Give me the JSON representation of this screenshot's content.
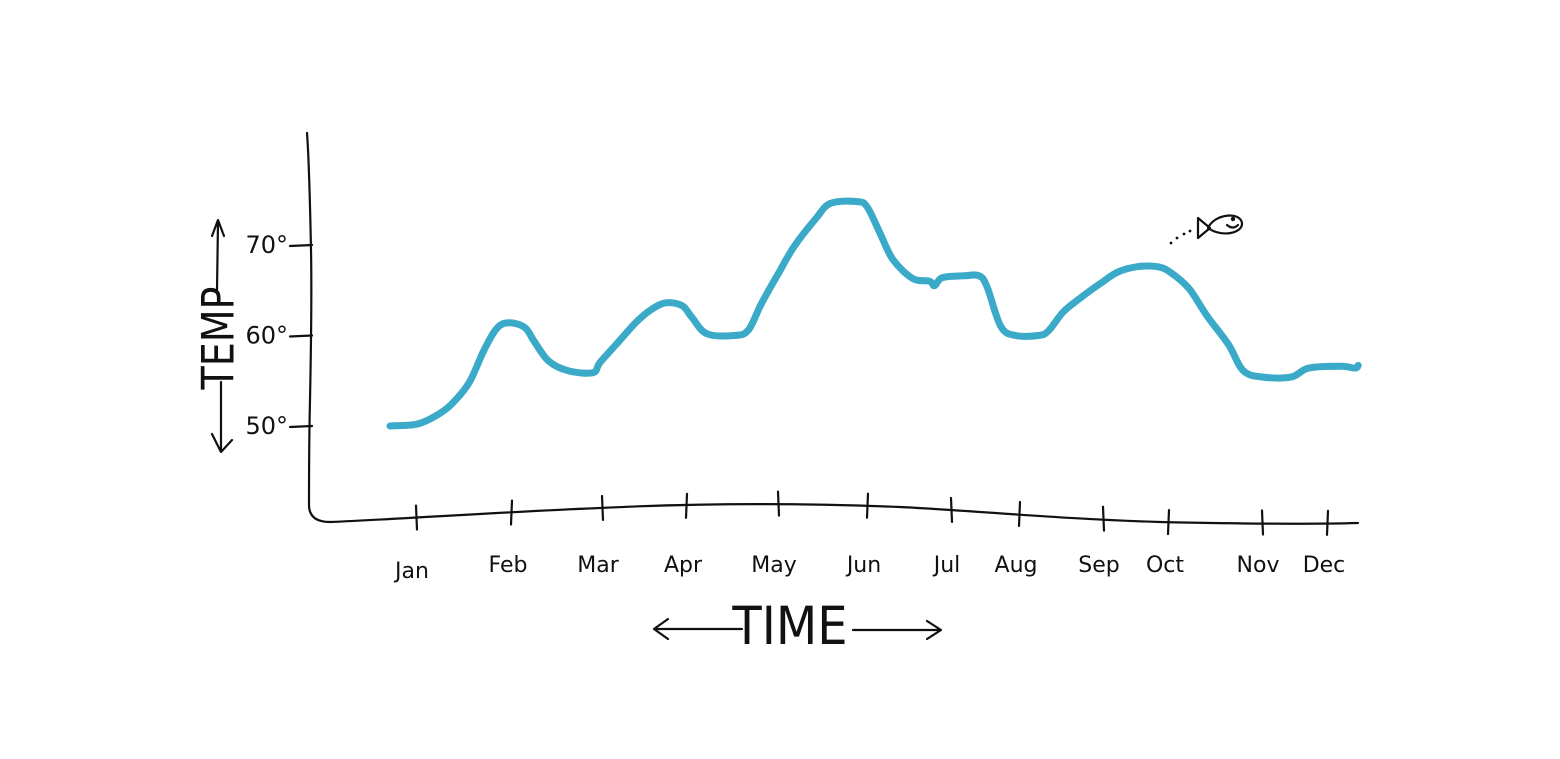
{
  "chart_data": {
    "type": "line",
    "title": "",
    "xlabel": "TIME",
    "ylabel": "TEMP",
    "categories": [
      "Jan",
      "Feb",
      "Mar",
      "Apr",
      "May",
      "Jun",
      "Jul",
      "Aug",
      "Sep",
      "Oct",
      "Nov",
      "Dec"
    ],
    "y_ticks": [
      {
        "value": 50,
        "label": "50°"
      },
      {
        "value": 60,
        "label": "60°"
      },
      {
        "value": 70,
        "label": "70°"
      }
    ],
    "ylim": [
      40,
      80
    ],
    "grid": false,
    "series": [
      {
        "color": "#3aaac8",
        "points": [
          [
            0.0,
            50.0
          ],
          [
            0.27,
            50.2
          ],
          [
            0.46,
            51.1
          ],
          [
            0.62,
            52.4
          ],
          [
            0.8,
            54.8
          ],
          [
            0.95,
            58.4
          ],
          [
            1.08,
            60.8
          ],
          [
            1.2,
            61.4
          ],
          [
            1.36,
            60.9
          ],
          [
            1.46,
            59.3
          ],
          [
            1.6,
            57.2
          ],
          [
            1.8,
            56.1
          ],
          [
            2.05,
            55.9
          ],
          [
            2.12,
            57.0
          ],
          [
            2.3,
            59.2
          ],
          [
            2.48,
            61.4
          ],
          [
            2.63,
            62.8
          ],
          [
            2.78,
            63.6
          ],
          [
            2.95,
            63.3
          ],
          [
            3.05,
            62.0
          ],
          [
            3.2,
            60.2
          ],
          [
            3.48,
            60.0
          ],
          [
            3.62,
            60.6
          ],
          [
            3.75,
            63.5
          ],
          [
            3.92,
            66.8
          ],
          [
            4.08,
            69.8
          ],
          [
            4.3,
            72.9
          ],
          [
            4.45,
            74.6
          ],
          [
            4.72,
            74.8
          ],
          [
            4.82,
            74.2
          ],
          [
            4.95,
            71.3
          ],
          [
            5.08,
            68.4
          ],
          [
            5.28,
            66.3
          ],
          [
            5.45,
            66.0
          ],
          [
            5.5,
            65.5
          ],
          [
            5.58,
            66.4
          ],
          [
            5.8,
            66.6
          ],
          [
            5.95,
            66.6
          ],
          [
            6.03,
            65.4
          ],
          [
            6.17,
            61.0
          ],
          [
            6.32,
            60.0
          ],
          [
            6.55,
            60.0
          ],
          [
            6.65,
            60.5
          ],
          [
            6.8,
            62.6
          ],
          [
            6.98,
            64.2
          ],
          [
            7.17,
            65.7
          ],
          [
            7.35,
            67.0
          ],
          [
            7.55,
            67.6
          ],
          [
            7.75,
            67.6
          ],
          [
            7.88,
            67.0
          ],
          [
            8.07,
            65.2
          ],
          [
            8.25,
            62.2
          ],
          [
            8.47,
            59.0
          ],
          [
            8.62,
            56.1
          ],
          [
            8.82,
            55.4
          ],
          [
            9.1,
            55.4
          ],
          [
            9.28,
            56.4
          ],
          [
            9.6,
            56.6
          ],
          [
            9.75,
            56.4
          ],
          [
            9.78,
            56.7
          ]
        ]
      }
    ],
    "annotations": []
  }
}
